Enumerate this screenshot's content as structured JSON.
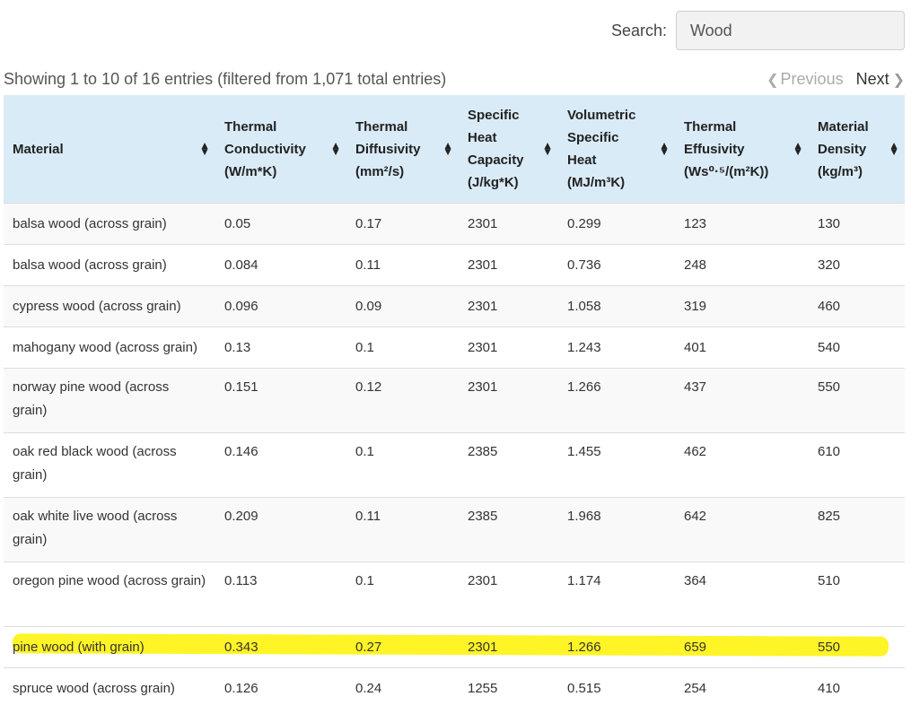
{
  "search": {
    "label": "Search:",
    "value": "Wood"
  },
  "info": "Showing 1 to 10 of 16 entries (filtered from 1,071 total entries)",
  "pager": {
    "previous": "Previous",
    "next": "Next"
  },
  "columns": [
    {
      "lines": [
        "Material"
      ]
    },
    {
      "lines": [
        "Thermal",
        "Conductivity",
        "(W/m*K)"
      ]
    },
    {
      "lines": [
        "Thermal",
        "Diffusivity",
        "(mm²/s)"
      ]
    },
    {
      "lines": [
        "Specific",
        "Heat",
        "Capacity",
        "(J/kg*K)"
      ]
    },
    {
      "lines": [
        "Volumetric",
        "Specific",
        "Heat",
        "(MJ/m³K)"
      ]
    },
    {
      "lines": [
        "Thermal",
        "Effusivity",
        "(Ws⁰·⁵/(m²K))"
      ]
    },
    {
      "lines": [
        "Material",
        "Density",
        "(kg/m³)"
      ]
    }
  ],
  "rows": [
    [
      "balsa wood (across grain)",
      "0.05",
      "0.17",
      "2301",
      "0.299",
      "123",
      "130"
    ],
    [
      "balsa wood (across grain)",
      "0.084",
      "0.11",
      "2301",
      "0.736",
      "248",
      "320"
    ],
    [
      "cypress wood (across grain)",
      "0.096",
      "0.09",
      "2301",
      "1.058",
      "319",
      "460"
    ],
    [
      "mahogany wood (across grain)",
      "0.13",
      "0.1",
      "2301",
      "1.243",
      "401",
      "540"
    ],
    [
      "norway pine wood (across grain)",
      "0.151",
      "0.12",
      "2301",
      "1.266",
      "437",
      "550"
    ],
    [
      "oak red black wood (across grain)",
      "0.146",
      "0.1",
      "2385",
      "1.455",
      "462",
      "610"
    ],
    [
      "oak white live wood (across grain)",
      "0.209",
      "0.11",
      "2385",
      "1.968",
      "642",
      "825"
    ],
    [
      "oregon pine wood (across grain)",
      "0.113",
      "0.1",
      "2301",
      "1.174",
      "364",
      "510"
    ],
    [
      "pine wood (with grain)",
      "0.343",
      "0.27",
      "2301",
      "1.266",
      "659",
      "550"
    ],
    [
      "spruce wood (across grain)",
      "0.126",
      "0.24",
      "1255",
      "0.515",
      "254",
      "410"
    ]
  ],
  "highlight_color": "#fff200"
}
